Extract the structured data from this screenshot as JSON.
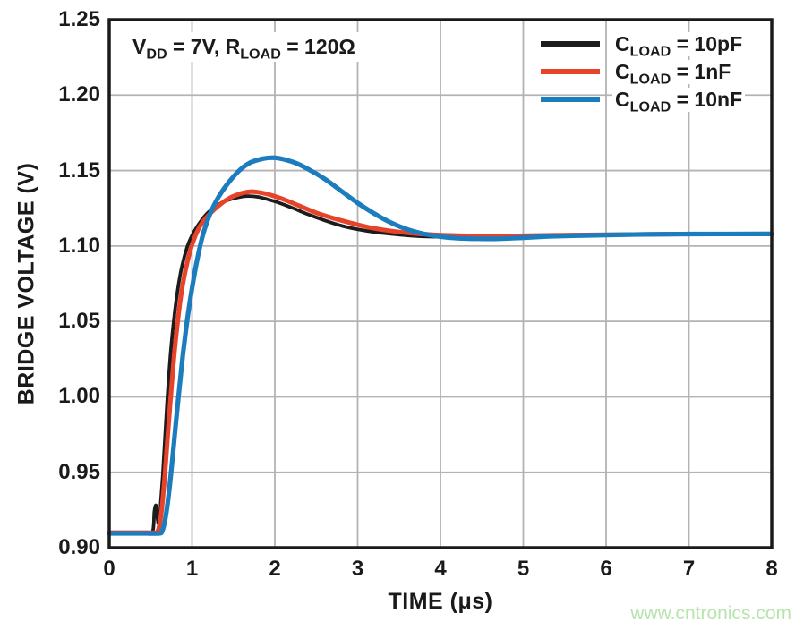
{
  "watermark": "www.cntronics.com",
  "annotation": {
    "p1": "V",
    "s1": "DD",
    "p2": " = 7V, R",
    "s2": "LOAD",
    "p3": " = 120Ω"
  },
  "legend": {
    "items": [
      {
        "base": "C",
        "sub": "LOAD",
        "rest": " = 10pF",
        "color": "#1c1c1c"
      },
      {
        "base": "C",
        "sub": "LOAD",
        "rest": " = 1nF",
        "color": "#e7432b"
      },
      {
        "base": "C",
        "sub": "LOAD",
        "rest": " = 10nF",
        "color": "#1b7cbe"
      }
    ]
  },
  "chart_data": {
    "type": "line",
    "xlabel": "TIME (μs)",
    "ylabel": "BRIDGE VOLTAGE (V)",
    "xlim": [
      0,
      8
    ],
    "ylim": [
      0.9,
      1.25
    ],
    "x_ticks": [
      0,
      1,
      2,
      3,
      4,
      5,
      6,
      7,
      8
    ],
    "x_tick_labels": [
      "0",
      "1",
      "2",
      "3",
      "4",
      "5",
      "6",
      "7",
      "8"
    ],
    "y_ticks": [
      0.9,
      0.95,
      1.0,
      1.05,
      1.1,
      1.15,
      1.2,
      1.25
    ],
    "y_tick_labels": [
      "0.90",
      "0.95",
      "1.00",
      "1.05",
      "1.10",
      "1.15",
      "1.20",
      "1.25"
    ],
    "grid": true,
    "grid_color": "#b3b3b3",
    "frame_color": "#1a1a1a",
    "legend_position": "top-right",
    "annotation_text": "VDD = 7V, RLOAD = 120Ω",
    "series": [
      {
        "name": "CLOAD = 10pF",
        "color": "#1c1c1c",
        "width": 3.8,
        "points": [
          [
            0,
            0.91
          ],
          [
            0.2,
            0.91
          ],
          [
            0.4,
            0.91
          ],
          [
            0.52,
            0.91
          ],
          [
            0.545,
            0.924
          ],
          [
            0.565,
            0.928
          ],
          [
            0.58,
            0.92
          ],
          [
            0.6,
            0.916
          ],
          [
            0.62,
            0.928
          ],
          [
            0.645,
            0.947
          ],
          [
            0.67,
            0.97
          ],
          [
            0.7,
            0.998
          ],
          [
            0.74,
            1.028
          ],
          [
            0.78,
            1.051
          ],
          [
            0.83,
            1.072
          ],
          [
            0.88,
            1.087
          ],
          [
            0.94,
            1.099
          ],
          [
            1.0,
            1.107
          ],
          [
            1.1,
            1.116
          ],
          [
            1.2,
            1.1225
          ],
          [
            1.35,
            1.1285
          ],
          [
            1.5,
            1.1315
          ],
          [
            1.65,
            1.133
          ],
          [
            1.8,
            1.1325
          ],
          [
            2.0,
            1.1295
          ],
          [
            2.2,
            1.1255
          ],
          [
            2.4,
            1.121
          ],
          [
            2.6,
            1.117
          ],
          [
            2.8,
            1.1135
          ],
          [
            3.0,
            1.111
          ],
          [
            3.2,
            1.1092
          ],
          [
            3.4,
            1.108
          ],
          [
            3.6,
            1.107
          ],
          [
            3.8,
            1.1063
          ],
          [
            4.0,
            1.106
          ],
          [
            4.3,
            1.1058
          ],
          [
            4.6,
            1.1058
          ],
          [
            5.0,
            1.1062
          ],
          [
            5.5,
            1.1068
          ],
          [
            6.0,
            1.1072
          ],
          [
            6.5,
            1.1075
          ],
          [
            7.0,
            1.1078
          ],
          [
            8.0,
            1.108
          ]
        ]
      },
      {
        "name": "CLOAD = 1nF",
        "color": "#e7432b",
        "width": 5,
        "points": [
          [
            0,
            0.91
          ],
          [
            0.2,
            0.91
          ],
          [
            0.45,
            0.91
          ],
          [
            0.56,
            0.91
          ],
          [
            0.59,
            0.9115
          ],
          [
            0.62,
            0.919
          ],
          [
            0.65,
            0.934
          ],
          [
            0.68,
            0.954
          ],
          [
            0.71,
            0.977
          ],
          [
            0.75,
            1.005
          ],
          [
            0.79,
            1.031
          ],
          [
            0.84,
            1.056
          ],
          [
            0.89,
            1.075
          ],
          [
            0.95,
            1.091
          ],
          [
            1.02,
            1.104
          ],
          [
            1.1,
            1.1135
          ],
          [
            1.2,
            1.1205
          ],
          [
            1.35,
            1.128
          ],
          [
            1.5,
            1.133
          ],
          [
            1.7,
            1.136
          ],
          [
            1.9,
            1.1345
          ],
          [
            2.1,
            1.131
          ],
          [
            2.3,
            1.1265
          ],
          [
            2.5,
            1.122
          ],
          [
            2.7,
            1.1185
          ],
          [
            2.9,
            1.1155
          ],
          [
            3.1,
            1.1128
          ],
          [
            3.3,
            1.1108
          ],
          [
            3.5,
            1.1093
          ],
          [
            3.7,
            1.1082
          ],
          [
            3.9,
            1.1075
          ],
          [
            4.2,
            1.1069
          ],
          [
            4.6,
            1.1066
          ],
          [
            5.0,
            1.1068
          ],
          [
            5.5,
            1.1072
          ],
          [
            6.0,
            1.1075
          ],
          [
            6.5,
            1.1077
          ],
          [
            7.0,
            1.1079
          ],
          [
            8.0,
            1.108
          ]
        ]
      },
      {
        "name": "CLOAD = 10nF",
        "color": "#1b7cbe",
        "width": 5.2,
        "points": [
          [
            0,
            0.9095
          ],
          [
            0.2,
            0.9095
          ],
          [
            0.45,
            0.9095
          ],
          [
            0.6,
            0.9095
          ],
          [
            0.64,
            0.911
          ],
          [
            0.68,
            0.92
          ],
          [
            0.72,
            0.936
          ],
          [
            0.76,
            0.957
          ],
          [
            0.8,
            0.98
          ],
          [
            0.84,
            1.002
          ],
          [
            0.89,
            1.028
          ],
          [
            0.94,
            1.05
          ],
          [
            1.0,
            1.072
          ],
          [
            1.07,
            1.093
          ],
          [
            1.14,
            1.109
          ],
          [
            1.22,
            1.1215
          ],
          [
            1.32,
            1.1325
          ],
          [
            1.44,
            1.142
          ],
          [
            1.57,
            1.15
          ],
          [
            1.7,
            1.1552
          ],
          [
            1.85,
            1.1578
          ],
          [
            1.98,
            1.1585
          ],
          [
            2.1,
            1.1575
          ],
          [
            2.25,
            1.155
          ],
          [
            2.4,
            1.151
          ],
          [
            2.6,
            1.1445
          ],
          [
            2.8,
            1.1365
          ],
          [
            3.0,
            1.1285
          ],
          [
            3.2,
            1.1215
          ],
          [
            3.4,
            1.1155
          ],
          [
            3.6,
            1.111
          ],
          [
            3.8,
            1.108
          ],
          [
            4.0,
            1.1062
          ],
          [
            4.2,
            1.1052
          ],
          [
            4.45,
            1.1048
          ],
          [
            4.7,
            1.1048
          ],
          [
            5.0,
            1.1055
          ],
          [
            5.3,
            1.1063
          ],
          [
            5.6,
            1.1068
          ],
          [
            6.0,
            1.1073
          ],
          [
            6.5,
            1.1077
          ],
          [
            7.0,
            1.1079
          ],
          [
            8.0,
            1.108
          ]
        ]
      }
    ]
  }
}
